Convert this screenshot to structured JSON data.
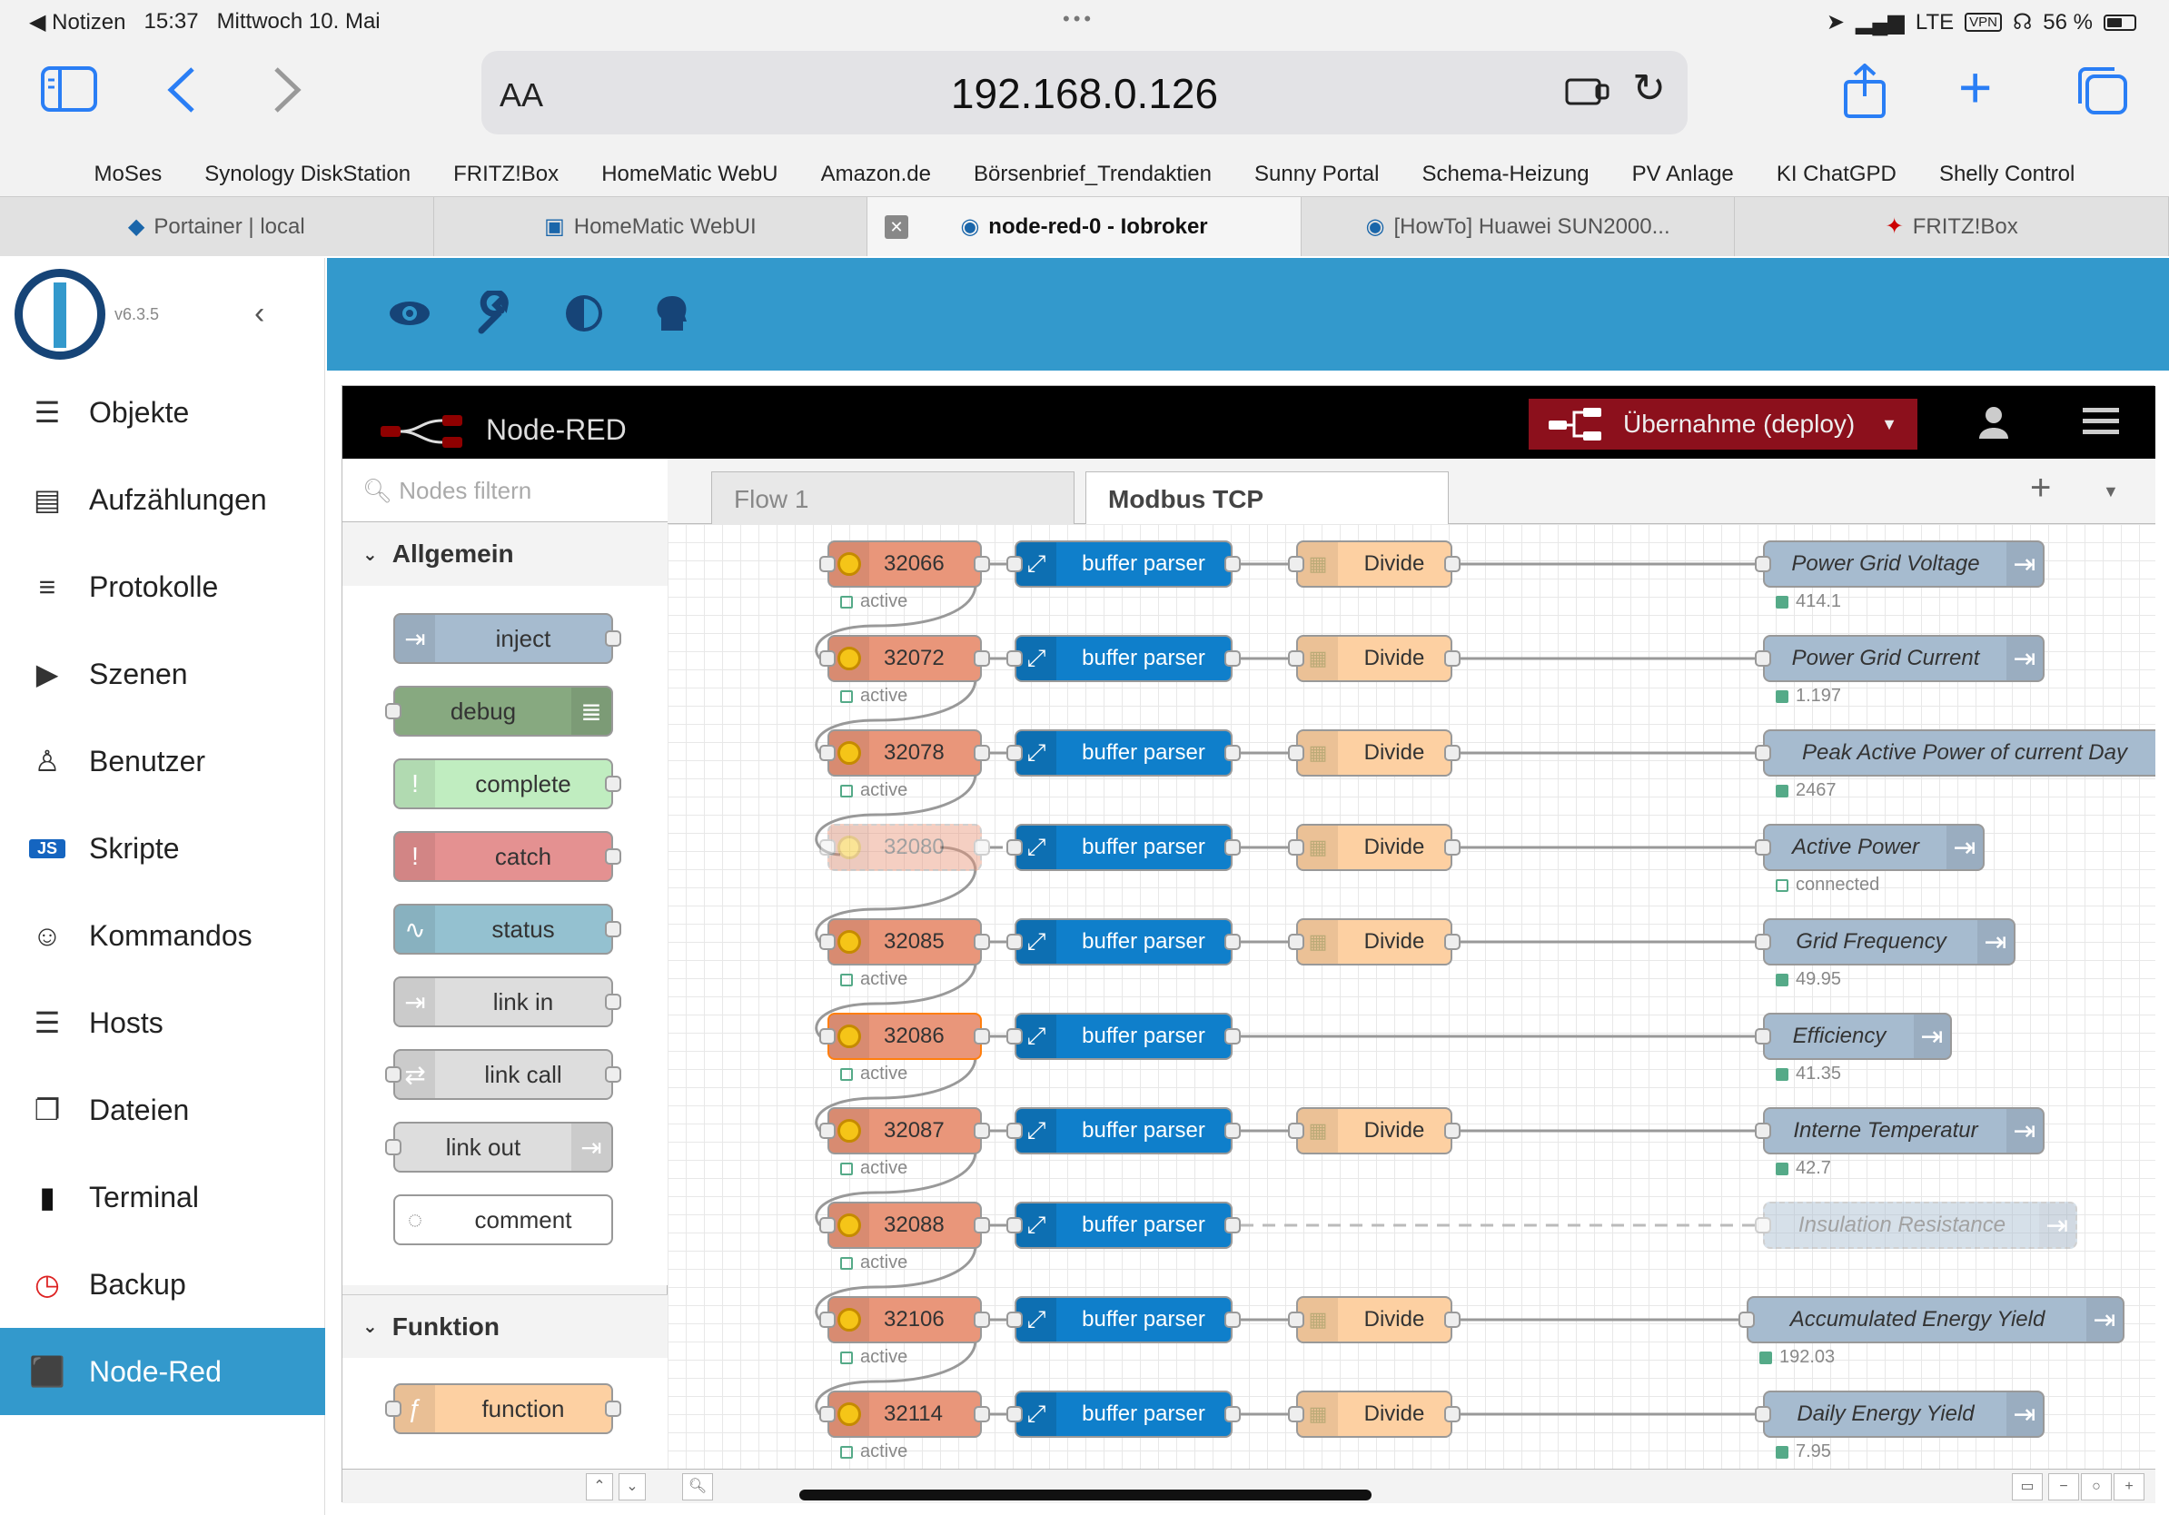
{
  "statusbar": {
    "back_app": "Notizen",
    "time": "15:37",
    "date": "Mittwoch 10. Mai",
    "dots": "•••",
    "network": "LTE",
    "vpn": "VPN",
    "battery": "56 %",
    "battery_level": 0.56
  },
  "browser": {
    "aa": "AA",
    "url": "192.168.0.126"
  },
  "bookmarks": [
    "MoSes",
    "Synology DiskStation",
    "FRITZ!Box",
    "HomeMatic WebU",
    "Amazon.de",
    "Börsenbrief_Trendaktien",
    "Sunny Portal",
    "Schema-Heizung",
    "PV Anlage",
    "KI ChatGPD",
    "Shelly Control"
  ],
  "tabs": [
    {
      "label": "Portainer | local",
      "active": false
    },
    {
      "label": "HomeMatic WebUI",
      "active": false
    },
    {
      "label": "node-red-0 - Iobroker",
      "active": true
    },
    {
      "label": "[HowTo] Huawei SUN2000...",
      "active": false
    },
    {
      "label": "FRITZ!Box",
      "active": false
    }
  ],
  "iobroker": {
    "version": "v6.3.5",
    "menu": [
      {
        "label": "Objekte",
        "icon": "list-icon",
        "glyph": "☰"
      },
      {
        "label": "Aufzählungen",
        "icon": "enum-icon",
        "glyph": "▤"
      },
      {
        "label": "Protokolle",
        "icon": "log-icon",
        "glyph": "≡"
      },
      {
        "label": "Szenen",
        "icon": "scene-icon",
        "glyph": "▶"
      },
      {
        "label": "Benutzer",
        "icon": "user-icon",
        "glyph": "♙"
      },
      {
        "label": "Skripte",
        "icon": "js-icon",
        "glyph": "JS"
      },
      {
        "label": "Kommandos",
        "icon": "command-icon",
        "glyph": "☺"
      },
      {
        "label": "Hosts",
        "icon": "hosts-icon",
        "glyph": "☰"
      },
      {
        "label": "Dateien",
        "icon": "files-icon",
        "glyph": "❐"
      },
      {
        "label": "Terminal",
        "icon": "terminal-icon",
        "glyph": "▮"
      },
      {
        "label": "Backup",
        "icon": "backup-icon",
        "glyph": "◷"
      },
      {
        "label": "Node-Red",
        "icon": "node-red-icon",
        "glyph": "⬛"
      }
    ]
  },
  "nodered": {
    "title": "Node-RED",
    "deploy": "Übernahme (deploy)",
    "filter_placeholder": "Nodes filtern",
    "categories": [
      "Allgemein",
      "Funktion"
    ],
    "palette": [
      {
        "label": "inject",
        "color": "#a6bbcf",
        "icon": "inject-icon",
        "glyph": "⇥",
        "side": "left",
        "in": false,
        "out": true
      },
      {
        "label": "debug",
        "color": "#87a980",
        "icon": "debug-icon",
        "glyph": "≣",
        "side": "right",
        "in": true,
        "out": false
      },
      {
        "label": "complete",
        "color": "#c0edc0",
        "icon": "complete-icon",
        "glyph": "!",
        "side": "left",
        "in": false,
        "out": true
      },
      {
        "label": "catch",
        "color": "#e49191",
        "icon": "catch-icon",
        "glyph": "!",
        "side": "left",
        "in": false,
        "out": true
      },
      {
        "label": "status",
        "color": "#94c1d0",
        "icon": "status-icon",
        "glyph": "∿",
        "side": "left",
        "in": false,
        "out": true
      },
      {
        "label": "link in",
        "color": "#dddddd",
        "icon": "link-in-icon",
        "glyph": "⇥",
        "side": "left",
        "in": false,
        "out": true
      },
      {
        "label": "link call",
        "color": "#dddddd",
        "icon": "link-call-icon",
        "glyph": "⇄",
        "side": "left",
        "in": true,
        "out": true
      },
      {
        "label": "link out",
        "color": "#dddddd",
        "icon": "link-out-icon",
        "glyph": "⇥",
        "side": "right",
        "in": true,
        "out": false
      },
      {
        "label": "comment",
        "color": "#ffffff",
        "icon": "comment-icon",
        "glyph": "◌",
        "side": "left",
        "in": false,
        "out": false
      }
    ],
    "function_palette": [
      {
        "label": "function",
        "color": "#fdd0a2",
        "icon": "function-icon",
        "glyph": "ƒ"
      }
    ],
    "flow_tabs": [
      {
        "label": "Flow 1",
        "active": false
      },
      {
        "label": "Modbus TCP",
        "active": true
      }
    ],
    "buffer_label": "buffer parser",
    "divide_label": "Divide",
    "rows": [
      {
        "reg": "32066",
        "status": "active",
        "divide": true,
        "out": "Power Grid Voltage",
        "value": "414.1",
        "ghost": false
      },
      {
        "reg": "32072",
        "status": "active",
        "divide": true,
        "out": "Power Grid Current",
        "value": "1.197",
        "ghost": false
      },
      {
        "reg": "32078",
        "status": "active",
        "divide": true,
        "out": "Peak Active Power of current Day",
        "value": "2467",
        "ghost": false
      },
      {
        "reg": "32080",
        "status": "",
        "divide": true,
        "out": "Active Power",
        "value": "connected",
        "ghost": true
      },
      {
        "reg": "32085",
        "status": "active",
        "divide": true,
        "out": "Grid Frequency",
        "value": "49.95",
        "ghost": false
      },
      {
        "reg": "32086",
        "status": "active",
        "divide": false,
        "out": "Efficiency",
        "value": "41.35",
        "ghost": false
      },
      {
        "reg": "32087",
        "status": "active",
        "divide": true,
        "out": "Interne Temperatur",
        "value": "42.7",
        "ghost": false
      },
      {
        "reg": "32088",
        "status": "active",
        "divide": false,
        "out": "Insulation Resistance",
        "value": "",
        "ghost": false,
        "out_ghost": true
      },
      {
        "reg": "32106",
        "status": "active",
        "divide": true,
        "out": "Accumulated Energy Yield",
        "value": "192.03",
        "ghost": false
      },
      {
        "reg": "32114",
        "status": "active",
        "divide": true,
        "out": "Daily Energy Yield",
        "value": "7.95",
        "ghost": false
      }
    ]
  },
  "colors": {
    "ioblue": "#3399cc",
    "iodark": "#164477",
    "deploy": "#8c101c"
  }
}
